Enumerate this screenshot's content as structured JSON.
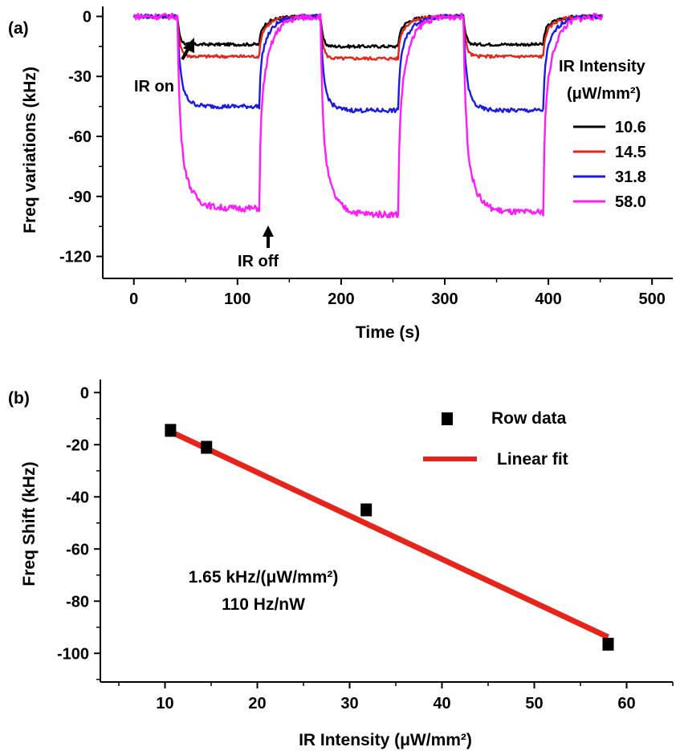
{
  "chart_data": [
    {
      "type": "line",
      "panel_label": "(a)",
      "xlabel": "Time (s)",
      "ylabel": "Freq variations (kHz)",
      "xlim": [
        -30,
        520
      ],
      "ylim": [
        -131,
        5
      ],
      "xticks": [
        0,
        100,
        200,
        300,
        400,
        500
      ],
      "yticks": [
        0,
        -30,
        -60,
        -90,
        -120
      ],
      "grid": false,
      "legend": {
        "title_line1": "IR Intensity",
        "title_line2": "(μW/mm²)",
        "placement": "right"
      },
      "annotations": {
        "on": "IR on",
        "off": "IR off"
      },
      "cycles": [
        {
          "on": 42,
          "off": 121
        },
        {
          "on": 180,
          "off": 255
        },
        {
          "on": 318,
          "off": 395
        }
      ],
      "x_end": 452,
      "series": [
        {
          "name": "10.6",
          "color": "#000000",
          "plateaus": [
            -14,
            -15,
            -14
          ],
          "rise_tau": 2.5
        },
        {
          "name": "14.5",
          "color": "#e8231a",
          "plateaus": [
            -20,
            -21,
            -20
          ],
          "rise_tau": 3
        },
        {
          "name": "31.8",
          "color": "#1a1ae6",
          "plateaus": [
            -45,
            -47,
            -47
          ],
          "rise_tau": 6
        },
        {
          "name": "58.0",
          "color": "#ff1aff",
          "plateaus": [
            -96,
            -99,
            -98
          ],
          "rise_tau": 9
        }
      ]
    },
    {
      "type": "scatter",
      "panel_label": "(b)",
      "xlabel": "IR Intensity (μW/mm²)",
      "ylabel": "Freq Shift (kHz)",
      "xlim": [
        3,
        65
      ],
      "ylim": [
        -111,
        5
      ],
      "xticks": [
        10,
        20,
        30,
        40,
        50,
        60
      ],
      "yticks": [
        0,
        -20,
        -40,
        -60,
        -80,
        -100
      ],
      "grid": false,
      "series": [
        {
          "name": "Row data",
          "color": "#000000",
          "x": [
            10.6,
            14.5,
            31.8,
            58.0
          ],
          "y": [
            -14.5,
            -21,
            -45,
            -96.5
          ]
        }
      ],
      "fit": {
        "name": "Linear fit",
        "color": "#e8231a",
        "x": [
          10.6,
          58.0
        ],
        "y": [
          -15.0,
          -93.8
        ]
      },
      "annotation_line1": "1.65 kHz/(μW/mm²)",
      "annotation_line2": "110 Hz/nW",
      "legend_placement": "top-right"
    }
  ]
}
